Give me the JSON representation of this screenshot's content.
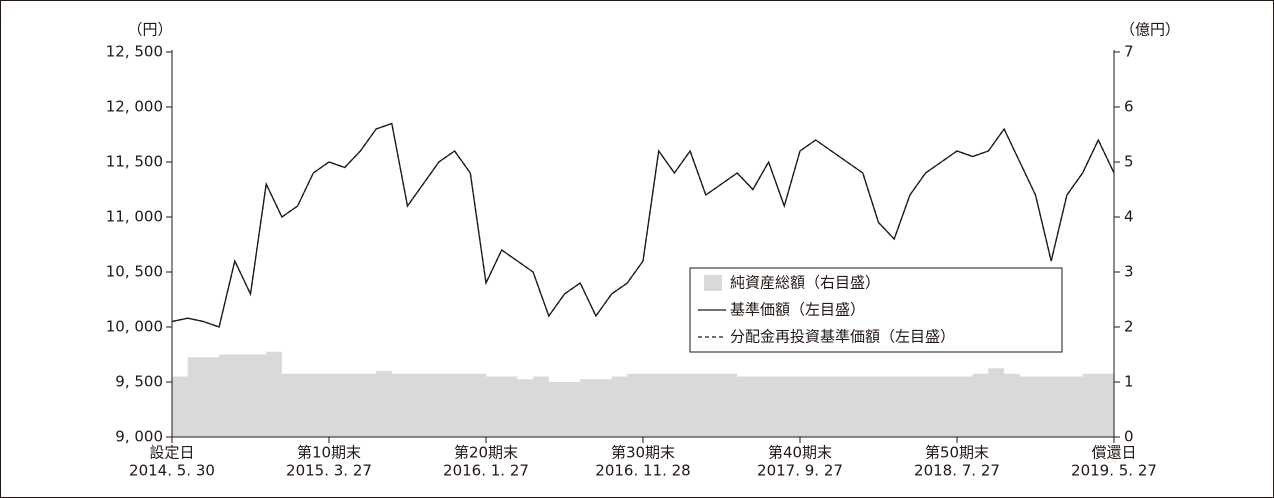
{
  "chart_data": {
    "type": "line",
    "ylabel": "（円）",
    "y2label": "（億円）",
    "x": [
      0,
      1,
      2,
      3,
      4,
      5,
      6,
      7,
      8,
      9,
      10,
      11,
      12,
      13,
      14,
      15,
      16,
      17,
      18,
      19,
      20,
      21,
      22,
      23,
      24,
      25,
      26,
      27,
      28,
      29,
      30,
      31,
      32,
      33,
      34,
      35,
      36,
      37,
      38,
      39,
      40,
      41,
      42,
      43,
      44,
      45,
      46,
      47,
      48,
      49,
      50,
      51,
      52,
      53,
      54,
      55,
      56,
      57,
      58,
      59,
      60
    ],
    "xlim": [
      0,
      60
    ],
    "xticks": [
      {
        "value": 0,
        "label": "設定日",
        "date": "2014. 5. 30"
      },
      {
        "value": 10,
        "label": "第10期末",
        "date": "2015. 3. 27"
      },
      {
        "value": 20,
        "label": "第20期末",
        "date": "2016. 1. 27"
      },
      {
        "value": 30,
        "label": "第30期末",
        "date": "2016. 11. 28"
      },
      {
        "value": 40,
        "label": "第40期末",
        "date": "2017. 9. 27"
      },
      {
        "value": 50,
        "label": "第50期末",
        "date": "2018. 7. 27"
      },
      {
        "value": 60,
        "label": "償還日",
        "date": "2019. 5. 27"
      }
    ],
    "ylim": [
      9000,
      12500
    ],
    "yticks": [
      {
        "value": 9000,
        "label": "9, 000"
      },
      {
        "value": 9500,
        "label": "9, 500"
      },
      {
        "value": 10000,
        "label": "10, 000"
      },
      {
        "value": 10500,
        "label": "10, 500"
      },
      {
        "value": 11000,
        "label": "11, 000"
      },
      {
        "value": 11500,
        "label": "11, 500"
      },
      {
        "value": 12000,
        "label": "12, 000"
      },
      {
        "value": 12500,
        "label": "12, 500"
      }
    ],
    "y2lim": [
      0,
      7
    ],
    "y2ticks": [
      0,
      1,
      2,
      3,
      4,
      5,
      6,
      7
    ],
    "series": [
      {
        "name": "純資産総額（右目盛）",
        "kind": "area",
        "axis": "y2",
        "color": "#d9d9d9",
        "values": [
          1.1,
          1.45,
          1.45,
          1.5,
          1.5,
          1.5,
          1.55,
          1.15,
          1.15,
          1.15,
          1.15,
          1.15,
          1.15,
          1.2,
          1.15,
          1.15,
          1.15,
          1.15,
          1.15,
          1.15,
          1.1,
          1.1,
          1.05,
          1.1,
          1.0,
          1.0,
          1.05,
          1.05,
          1.1,
          1.15,
          1.15,
          1.15,
          1.15,
          1.15,
          1.15,
          1.15,
          1.1,
          1.1,
          1.1,
          1.1,
          1.1,
          1.1,
          1.1,
          1.1,
          1.1,
          1.1,
          1.1,
          1.1,
          1.1,
          1.1,
          1.1,
          1.15,
          1.25,
          1.15,
          1.1,
          1.1,
          1.1,
          1.1,
          1.15,
          1.15,
          1.1
        ]
      },
      {
        "name": "基準価額（左目盛）",
        "kind": "line",
        "color": "#231815",
        "values": [
          10050,
          10080,
          10050,
          10000,
          10600,
          10300,
          11300,
          11000,
          11100,
          11400,
          11500,
          11450,
          11600,
          11800,
          11850,
          11100,
          11300,
          11500,
          11600,
          11400,
          10400,
          10700,
          10600,
          10500,
          10100,
          10300,
          10400,
          10100,
          10300,
          10400,
          10600,
          11600,
          11400,
          11600,
          11200,
          11300,
          11400,
          11250,
          11500,
          11100,
          11600,
          11700,
          11600,
          11500,
          11400,
          10950,
          10800,
          11200,
          11400,
          11500,
          11600,
          11550,
          11600,
          11800,
          11500,
          11200,
          10600,
          11200,
          11400,
          11700,
          11400
        ]
      },
      {
        "name": "分配金再投資基準価額（左目盛）",
        "kind": "dashed",
        "color": "#231815",
        "values": [
          10050,
          10080,
          10050,
          10000,
          10600,
          10300,
          11300,
          11000,
          11100,
          11400,
          11500,
          11450,
          11600,
          11800,
          11850,
          11100,
          11300,
          11500,
          11600,
          11400,
          10400,
          10700,
          10600,
          10500,
          10100,
          10300,
          10400,
          10100,
          10300,
          10400,
          10600,
          11600,
          11400,
          11600,
          11200,
          11300,
          11400,
          11250,
          11500,
          11100,
          11600,
          11700,
          11600,
          11500,
          11400,
          10950,
          10800,
          11200,
          11400,
          11500,
          11600,
          11550,
          11600,
          11800,
          11500,
          11200,
          10600,
          11200,
          11400,
          11700,
          11400
        ]
      }
    ]
  }
}
